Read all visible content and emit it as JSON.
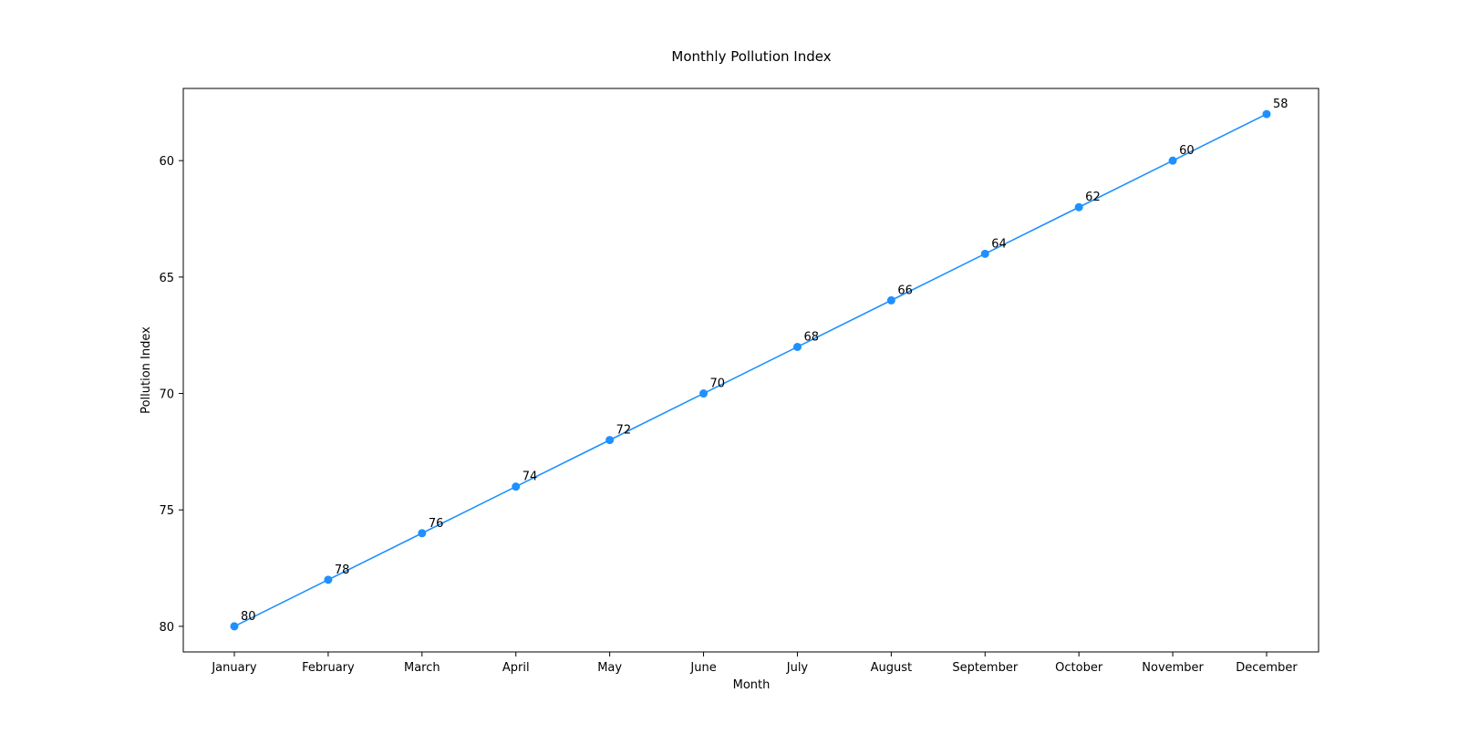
{
  "chart_data": {
    "type": "line",
    "title": "Monthly Pollution Index",
    "xlabel": "Month",
    "ylabel": "Pollution Index",
    "categories": [
      "January",
      "February",
      "March",
      "April",
      "May",
      "June",
      "July",
      "August",
      "September",
      "October",
      "November",
      "December"
    ],
    "series": [
      {
        "values": [
          80,
          78,
          76,
          74,
          72,
          70,
          68,
          66,
          64,
          62,
          60,
          58
        ],
        "color": "#1E90FF",
        "marker": "circle"
      }
    ],
    "ylim": [
      81.1,
      56.9
    ],
    "y_inverted": true,
    "yticks": [
      60,
      65,
      70,
      75,
      80
    ],
    "data_labels": true,
    "grid": false,
    "legend": "none"
  }
}
